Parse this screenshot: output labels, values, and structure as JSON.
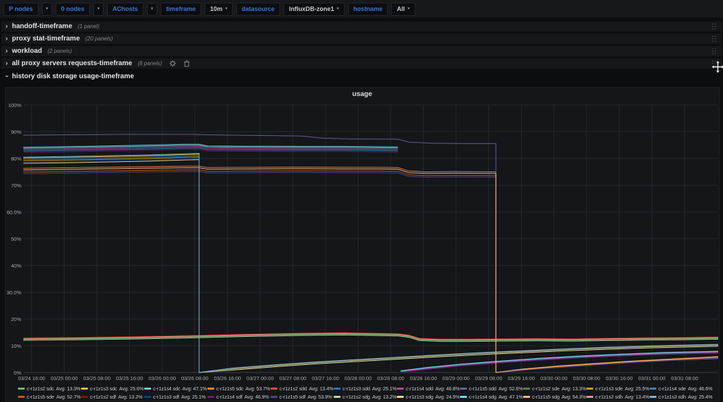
{
  "toolbar": {
    "variables": [
      {
        "label": "P nodes"
      },
      {
        "label": "0 nodes"
      },
      {
        "label": "AChosts"
      },
      {
        "label": "timeframe",
        "value": "10m"
      },
      {
        "label": "datasource",
        "value": "InfluxDB-zone1"
      },
      {
        "label": "hostname",
        "value": "All"
      }
    ]
  },
  "rows": [
    {
      "title": "handoff-timeframe",
      "count": "(1 panel)",
      "collapsed": true
    },
    {
      "title": "proxy stat-timeframe",
      "count": "(20 panels)",
      "collapsed": true
    },
    {
      "title": "workload",
      "count": "(2 panels)",
      "collapsed": true
    },
    {
      "title": "all proxy servers requests-timeframe",
      "count": "(8 panels)",
      "collapsed": true,
      "has_actions": true
    },
    {
      "title": "history disk storage usage-timeframe",
      "count": "",
      "collapsed": false
    }
  ],
  "panel": {
    "title": "usage"
  },
  "chart_data": {
    "type": "line",
    "title": "usage",
    "xlabel": "",
    "ylabel": "",
    "ylim": [
      0,
      100
    ],
    "grid": true,
    "legend_position": "bottom",
    "y_ticks": [
      "0%",
      "10%",
      "20%",
      "30.0%",
      "40%",
      "50%",
      "60.0%",
      "70%",
      "80%",
      "90%",
      "100%"
    ],
    "x_ticks": [
      "03/24 16:00",
      "03/25 00:00",
      "03/25 08:00",
      "03/25 16:00",
      "03/26 00:00",
      "03/26 08:00",
      "03/26 16:00",
      "03/27 00:00",
      "03/27 08:00",
      "03/27 16:00",
      "03/28 00:00",
      "03/28 08:00",
      "03/28 16:00",
      "03/29 00:00",
      "03/29 08:00",
      "03/29 16:00",
      "03/30 00:00",
      "03/30 08:00",
      "03/30 16:00",
      "03/31 00:00",
      "03/31 08:00"
    ],
    "x_unit": "percent-of-range",
    "y_unit": "percent",
    "groups": {
      "s2": {
        "connected": false,
        "pre": [
          [
            0,
            12.6
          ],
          [
            8,
            12.8
          ],
          [
            16,
            13.1
          ],
          [
            24,
            13.5
          ],
          [
            32,
            14.0
          ],
          [
            40,
            14.4
          ],
          [
            46,
            14.6
          ],
          [
            50,
            14.4
          ],
          [
            54,
            14.2
          ],
          [
            55.5,
            13.7
          ],
          [
            57,
            12.5
          ],
          [
            60,
            12.2
          ],
          [
            64,
            12.2
          ],
          [
            68,
            12.3
          ],
          [
            74,
            12.4
          ],
          [
            79,
            12.3
          ],
          [
            84,
            12.5
          ],
          [
            90,
            12.7
          ],
          [
            95,
            12.8
          ],
          [
            100,
            13.0
          ]
        ]
      },
      "s3": {
        "connected": true,
        "pre": [
          [
            0,
            79.3
          ],
          [
            6,
            79.5
          ],
          [
            12,
            79.8
          ],
          [
            18,
            80.1
          ],
          [
            23,
            80.5
          ],
          [
            25.3,
            80.7
          ]
        ],
        "post": [
          [
            25.3,
            0
          ],
          [
            30,
            1.2
          ],
          [
            36,
            2.4
          ],
          [
            42,
            3.5
          ],
          [
            48,
            4.4
          ],
          [
            54,
            5.3
          ],
          [
            60,
            6.2
          ],
          [
            66,
            7.0
          ],
          [
            72,
            7.7
          ],
          [
            78,
            8.4
          ],
          [
            84,
            9.0
          ],
          [
            90,
            9.5
          ],
          [
            100,
            10.1
          ]
        ]
      },
      "s4": {
        "connected": false,
        "pre": [
          [
            0,
            83.0
          ],
          [
            6,
            83.2
          ],
          [
            12,
            83.5
          ],
          [
            18,
            83.8
          ],
          [
            23,
            84.1
          ],
          [
            25.3,
            84.1
          ],
          [
            26.5,
            83.5
          ],
          [
            32,
            83.4
          ],
          [
            40,
            83.3
          ],
          [
            46,
            83.3
          ],
          [
            50,
            83.2
          ],
          [
            53.9,
            83.1
          ]
        ],
        "post": [
          [
            54.3,
            0.2
          ],
          [
            58,
            1.4
          ],
          [
            63,
            2.7
          ],
          [
            68,
            3.7
          ],
          [
            74,
            4.8
          ],
          [
            80,
            5.7
          ],
          [
            86,
            6.4
          ],
          [
            92,
            7.0
          ],
          [
            100,
            7.5
          ]
        ]
      },
      "s5": {
        "connected": true,
        "pre": [
          [
            0,
            75.4
          ],
          [
            8,
            75.7
          ],
          [
            16,
            76.0
          ],
          [
            23,
            76.2
          ],
          [
            25.3,
            76.2
          ],
          [
            26.5,
            75.7
          ],
          [
            33,
            75.8
          ],
          [
            40,
            75.9
          ],
          [
            46,
            75.8
          ],
          [
            51,
            75.8
          ],
          [
            53.9,
            75.7
          ],
          [
            55.5,
            74.4
          ],
          [
            58,
            74.1
          ],
          [
            62,
            74.2
          ],
          [
            68,
            74.1
          ]
        ],
        "post": [
          [
            68,
            0
          ],
          [
            72,
            1.1
          ],
          [
            77,
            2.2
          ],
          [
            82,
            3.1
          ],
          [
            88,
            4.1
          ],
          [
            94,
            4.9
          ],
          [
            100,
            5.7
          ]
        ]
      },
      "s5d": {
        "connected": true,
        "pre": [
          [
            0,
            88.7
          ],
          [
            8,
            88.9
          ],
          [
            16,
            89.0
          ],
          [
            24,
            89.0
          ],
          [
            28,
            88.8
          ],
          [
            34,
            88.6
          ],
          [
            40,
            88.4
          ],
          [
            43,
            87.6
          ],
          [
            47,
            87.3
          ],
          [
            53.9,
            87.2
          ],
          [
            55.5,
            86.1
          ],
          [
            59,
            85.7
          ],
          [
            63,
            85.6
          ],
          [
            68,
            85.6
          ]
        ],
        "post": [
          [
            68,
            0
          ],
          [
            74,
            1.3
          ],
          [
            81,
            2.6
          ],
          [
            88,
            3.8
          ],
          [
            94,
            4.6
          ],
          [
            100,
            5.2
          ]
        ]
      }
    },
    "series": [
      {
        "name": "c-r1z1s2 sdc",
        "avg": "Avg: 13.3%",
        "color": "#7EB26D",
        "group": "s2",
        "off_pre": -0.1,
        "off_post": 0
      },
      {
        "name": "c-r1z1s3 sdc",
        "avg": "Avg: 25.6%",
        "color": "#EAB839",
        "group": "s3",
        "off_pre": 0.9,
        "off_post": 0.25
      },
      {
        "name": "c-r1z1s4 sdc",
        "avg": "Avg: 47.1%",
        "color": "#6ED0E0",
        "group": "s4",
        "off_pre": 0.8,
        "off_post": 0.3
      },
      {
        "name": "c-r1z1s5 sdc",
        "avg": "Avg: 53.7%",
        "color": "#EF843C",
        "group": "s5",
        "off_pre": 0.9,
        "off_post": 0.25
      },
      {
        "name": "c-r1z1s2 sdd",
        "avg": "Avg: 13.4%",
        "color": "#E24D42",
        "group": "s2",
        "off_pre": 0.2,
        "off_post": 0
      },
      {
        "name": "c-r1z1s3 sdd",
        "avg": "Avg: 25.1%",
        "color": "#1F78C1",
        "group": "s3",
        "off_pre": 0.4,
        "off_post": 0.1
      },
      {
        "name": "c-r1z1s4 sdd",
        "avg": "Avg: 46.8%",
        "color": "#BA43A9",
        "group": "s4",
        "off_pre": 0.3,
        "off_post": 0.15
      },
      {
        "name": "c-r1z1s5 sdd",
        "avg": "Avg: 52.6%",
        "color": "#705DA0",
        "group": "s5d",
        "off_pre": 0,
        "off_post": 0
      },
      {
        "name": "c-r1z1s2 sde",
        "avg": "Avg: 13.3%",
        "color": "#508642",
        "group": "s2",
        "off_pre": -0.3,
        "off_post": 0
      },
      {
        "name": "c-r1z1s3 sde",
        "avg": "Avg: 25.5%",
        "color": "#CCA300",
        "group": "s3",
        "off_pre": -0.1,
        "off_post": 0
      },
      {
        "name": "c-r1z1s4 sde",
        "avg": "Avg: 46.6%",
        "color": "#447EBC",
        "group": "s4",
        "off_pre": -0.2,
        "off_post": -0.1
      },
      {
        "name": "c-r1z1s5 sde",
        "avg": "Avg: 52.7%",
        "color": "#C15C17",
        "group": "s5",
        "off_pre": -0.5,
        "off_post": -0.1
      },
      {
        "name": "c-r1z1s2 sdf",
        "avg": "Avg: 13.2%",
        "color": "#890F02",
        "group": "s2",
        "off_pre": 0.4,
        "off_post": 0
      },
      {
        "name": "c-r1z1s3 sdf",
        "avg": "Avg: 25.1%",
        "color": "#0A437C",
        "group": "s3",
        "off_pre": -0.6,
        "off_post": -0.15
      },
      {
        "name": "c-r1z1s4 sdf",
        "avg": "Avg: 46.9%",
        "color": "#6D1F62",
        "group": "s4",
        "off_pre": -0.7,
        "off_post": -0.25
      },
      {
        "name": "c-r1z1s5 sdf",
        "avg": "Avg: 53.9%",
        "color": "#584477",
        "group": "s5",
        "off_pre": -1.1,
        "off_post": -0.25
      },
      {
        "name": "c-r1z1s2 sdg",
        "avg": "Avg: 13.2%",
        "color": "#B7DBAB",
        "group": "s2",
        "off_pre": -0.55,
        "off_post": 0
      },
      {
        "name": "c-r1z1s3 sdg",
        "avg": "Avg: 24.9%",
        "color": "#F4D598",
        "group": "s3",
        "off_pre": -1.1,
        "off_post": -0.3
      },
      {
        "name": "c-r1z1s4 sdg",
        "avg": "Avg: 47.1%",
        "color": "#70DBED",
        "group": "s4",
        "off_pre": 1.2,
        "off_post": 0.45
      },
      {
        "name": "c-r1z1s5 sdg",
        "avg": "Avg: 54.3%",
        "color": "#F9BA8F",
        "group": "s5",
        "off_pre": 0.3,
        "off_post": 0.1
      },
      {
        "name": "c-r1z1s2 sdh",
        "avg": "Avg: 13.4%",
        "color": "#F29191",
        "group": "s2",
        "off_pre": 0.1,
        "off_post": 0
      },
      {
        "name": "c-r1z1s3 sdh",
        "avg": "Avg: 25.4%",
        "color": "#82B5D8",
        "group": "s3",
        "off_pre": 1.2,
        "off_post": 0.45
      }
    ]
  }
}
